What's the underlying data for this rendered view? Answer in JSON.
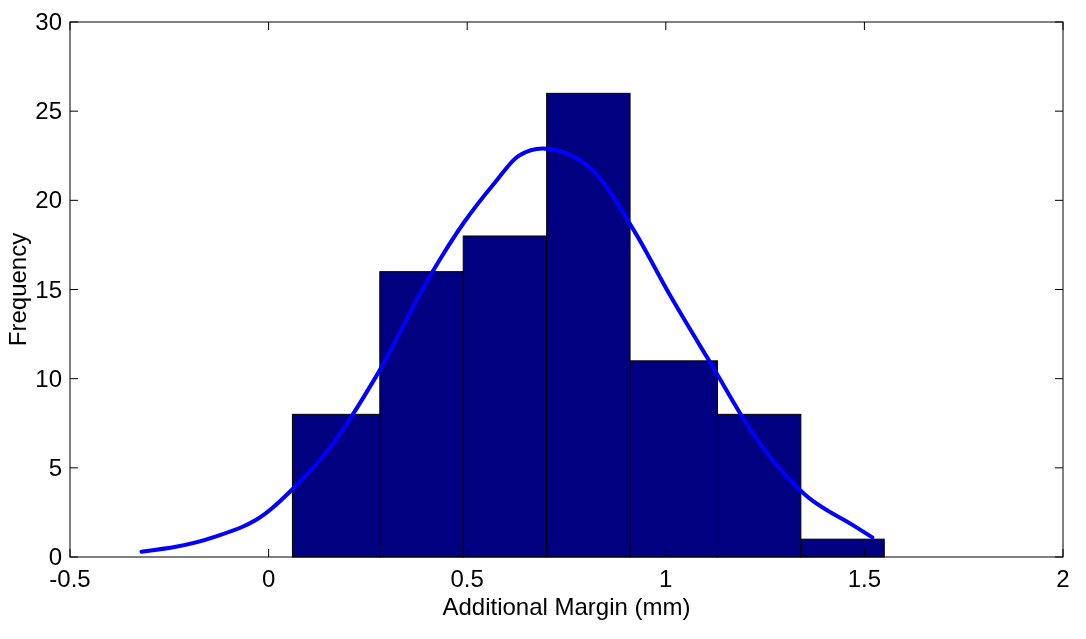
{
  "chart_data": {
    "type": "histogram",
    "xlabel": "Additional Margin (mm)",
    "ylabel": "Frequency",
    "xlim": [
      -0.5,
      2
    ],
    "xticks": [
      -0.5,
      0,
      0.5,
      1,
      1.5,
      2
    ],
    "ylim": [
      0,
      30
    ],
    "yticks": [
      0,
      5,
      10,
      15,
      20,
      25,
      30
    ],
    "grid": false,
    "bins": [
      0.06,
      0.28,
      0.49,
      0.7,
      0.91,
      1.13,
      1.34,
      1.55
    ],
    "series": [
      {
        "color": "#000080",
        "values": [
          8,
          16,
          18,
          26,
          11,
          8,
          1
        ]
      },
      {
        "type": "line",
        "color": "#0000ff",
        "x": [
          -0.32,
          -0.14,
          -0.01,
          0.06,
          0.16,
          0.27,
          0.41,
          0.49,
          0.57,
          0.63,
          0.69,
          0.8,
          0.92,
          1.01,
          1.12,
          1.22,
          1.35,
          1.47,
          1.52
        ],
        "values": [
          0.3,
          1.1,
          2.4,
          3.8,
          6.3,
          10.1,
          15.9,
          18.7,
          21.0,
          22.5,
          22.9,
          22.0,
          18.3,
          14.7,
          10.6,
          6.9,
          3.5,
          1.8,
          1.1
        ]
      }
    ]
  }
}
